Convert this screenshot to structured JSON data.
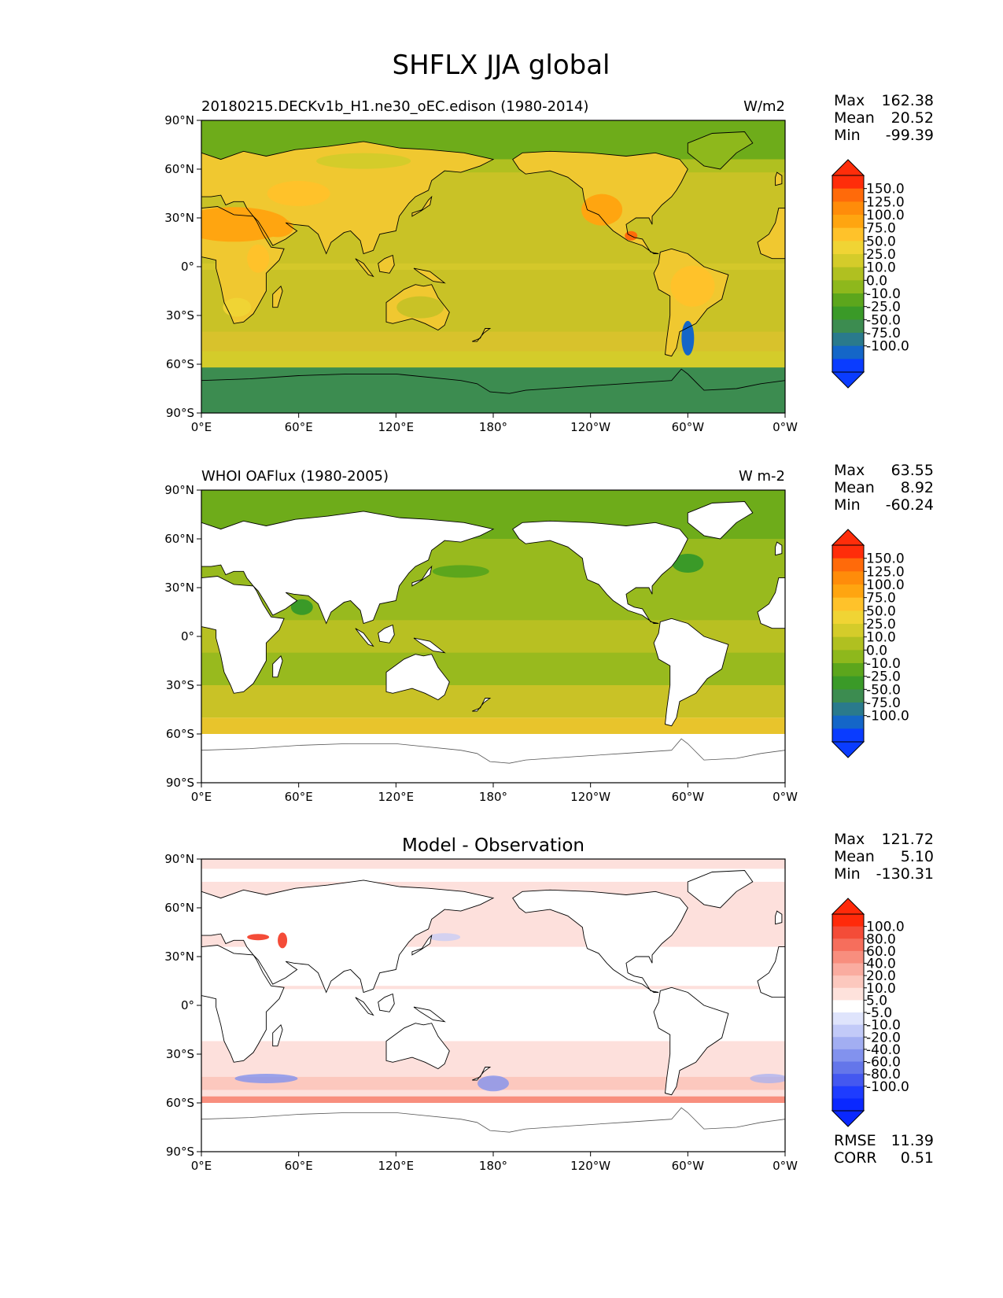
{
  "figure_title": "SHFLX JJA global",
  "colors": {
    "land_model": "#f0c830",
    "ocean_model": "#c9c226",
    "arctic_model": "#6eac1a",
    "antarctic_model": "#3c8c50",
    "ocean_obs": "#98ba1e",
    "ocean_obs_south": "#c9c226",
    "diff_base": "#fde0dc",
    "coast": "#000000",
    "frame": "#000000"
  },
  "chart_data": [
    {
      "type": "heatmap",
      "panel": "model",
      "title": "",
      "left_title": "20180215.DECKv1b_H1.ne30_oEC.edison (1980-2014)",
      "units": "W/m2",
      "lon_ticks": [
        "0°E",
        "60°E",
        "120°E",
        "180°",
        "120°W",
        "60°W",
        "0°W"
      ],
      "lat_ticks": [
        "90°N",
        "60°N",
        "30°N",
        "0°",
        "30°S",
        "60°S",
        "90°S"
      ],
      "stats": [
        {
          "label": "Max",
          "value": "162.38"
        },
        {
          "label": "Mean",
          "value": "20.52"
        },
        {
          "label": "Min",
          "value": "-99.39"
        }
      ],
      "colorbar": {
        "labels": [
          "150.0",
          "125.0",
          "100.0",
          "75.0",
          "50.0",
          "25.0",
          "10.0",
          "0.0",
          "-10.0",
          "-25.0",
          "-50.0",
          "-75.0",
          "-100.0"
        ],
        "colors": [
          "#ff2d0a",
          "#ff6a0a",
          "#ff8c0a",
          "#ffa510",
          "#ffc22a",
          "#f0d434",
          "#d4cc2a",
          "#b0c020",
          "#8eb81c",
          "#5ca61c",
          "#3a9a28",
          "#3c8c50",
          "#2a7a8c",
          "#1466c8",
          "#0a3cff"
        ]
      }
    },
    {
      "type": "heatmap",
      "panel": "observation",
      "title": "",
      "left_title": "WHOI OAFlux (1980-2005)",
      "units": "W m-2",
      "lon_ticks": [
        "0°E",
        "60°E",
        "120°E",
        "180°",
        "120°W",
        "60°W",
        "0°W"
      ],
      "lat_ticks": [
        "90°N",
        "60°N",
        "30°N",
        "0°",
        "30°S",
        "60°S",
        "90°S"
      ],
      "stats": [
        {
          "label": "Max",
          "value": "63.55"
        },
        {
          "label": "Mean",
          "value": "8.92"
        },
        {
          "label": "Min",
          "value": "-60.24"
        }
      ],
      "colorbar": {
        "labels": [
          "150.0",
          "125.0",
          "100.0",
          "75.0",
          "50.0",
          "25.0",
          "10.0",
          "0.0",
          "-10.0",
          "-25.0",
          "-50.0",
          "-75.0",
          "-100.0"
        ],
        "colors": [
          "#ff2d0a",
          "#ff6a0a",
          "#ff8c0a",
          "#ffa510",
          "#ffc22a",
          "#f0d434",
          "#d4cc2a",
          "#b0c020",
          "#8eb81c",
          "#5ca61c",
          "#3a9a28",
          "#3c8c50",
          "#2a7a8c",
          "#1466c8",
          "#0a3cff"
        ]
      }
    },
    {
      "type": "heatmap",
      "panel": "difference",
      "title": "Model - Observation",
      "left_title": "",
      "units": "",
      "lon_ticks": [
        "0°E",
        "60°E",
        "120°E",
        "180°",
        "120°W",
        "60°W",
        "0°W"
      ],
      "lat_ticks": [
        "90°N",
        "60°N",
        "30°N",
        "0°",
        "30°S",
        "60°S",
        "90°S"
      ],
      "stats": [
        {
          "label": "Max",
          "value": "121.72"
        },
        {
          "label": "Mean",
          "value": "5.10"
        },
        {
          "label": "Min",
          "value": "-130.31"
        }
      ],
      "colorbar": {
        "labels": [
          "100.0",
          "80.0",
          "60.0",
          "40.0",
          "20.0",
          "10.0",
          "5.0",
          "-5.0",
          "-10.0",
          "-20.0",
          "-40.0",
          "-60.0",
          "-80.0",
          "-100.0"
        ],
        "colors": [
          "#ff2a0a",
          "#f44c38",
          "#f66e5c",
          "#f88e7e",
          "#faaca0",
          "#fcc8be",
          "#fee2dc",
          "#ffffff",
          "#dfe4fc",
          "#c2caf8",
          "#a2aef2",
          "#8292ee",
          "#6476ea",
          "#4458f0",
          "#1e3cff",
          "#0a28ff"
        ]
      },
      "footer_stats": [
        {
          "label": "RMSE",
          "value": "11.39"
        },
        {
          "label": "CORR",
          "value": "0.51"
        }
      ]
    }
  ]
}
